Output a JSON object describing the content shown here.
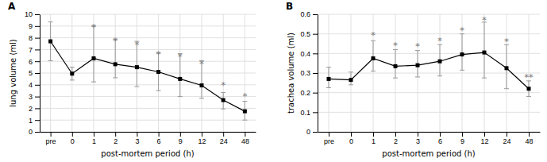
{
  "chart_data": [
    {
      "type": "line",
      "title": "A",
      "xlabel": "post-mortem period (h)",
      "ylabel": "lung volume (ml)",
      "categories": [
        "pre",
        "0",
        "1",
        "2",
        "3",
        "6",
        "9",
        "12",
        "24",
        "48"
      ],
      "values": [
        7.7,
        4.95,
        6.25,
        5.75,
        5.5,
        5.1,
        4.5,
        3.95,
        2.7,
        1.75
      ],
      "error_upper": [
        1.65,
        0.55,
        2.75,
        2.1,
        2.2,
        1.6,
        2.15,
        2.1,
        0.65,
        0.85
      ],
      "error_lower": [
        1.65,
        0.55,
        2.0,
        1.15,
        1.65,
        1.6,
        1.5,
        1.1,
        0.75,
        0.75
      ],
      "annotations": [
        {
          "category": "1",
          "y": 9.0,
          "text": "*"
        },
        {
          "category": "2",
          "y": 7.85,
          "text": "*"
        },
        {
          "category": "3",
          "y": 7.5,
          "text": "*"
        },
        {
          "category": "6",
          "y": 6.7,
          "text": "*"
        },
        {
          "category": "9",
          "y": 6.5,
          "text": "*"
        },
        {
          "category": "12",
          "y": 5.9,
          "text": "*"
        },
        {
          "category": "24",
          "y": 4.05,
          "text": "*"
        },
        {
          "category": "48",
          "y": 3.1,
          "text": "*"
        }
      ],
      "color": "#000000",
      "marker": "square",
      "grid": true,
      "ylim": [
        0,
        10
      ],
      "yticks": [
        0,
        1,
        2,
        3,
        4,
        5,
        6,
        7,
        8,
        9,
        10
      ]
    },
    {
      "type": "line",
      "title": "B",
      "xlabel": "post-mortem period (h)",
      "ylabel": "trachea volume (ml)",
      "categories": [
        "pre",
        "0",
        "1",
        "2",
        "3",
        "6",
        "9",
        "12",
        "24",
        "48"
      ],
      "values": [
        0.27,
        0.265,
        0.375,
        0.335,
        0.34,
        0.36,
        0.395,
        0.405,
        0.325,
        0.22
      ],
      "error_upper": [
        0.06,
        0.04,
        0.09,
        0.085,
        0.075,
        0.085,
        0.105,
        0.155,
        0.12,
        0.04
      ],
      "error_lower": [
        0.045,
        0.025,
        0.065,
        0.06,
        0.06,
        0.075,
        0.08,
        0.13,
        0.105,
        0.04
      ],
      "annotations": [
        {
          "category": "1",
          "y": 0.5,
          "text": "*"
        },
        {
          "category": "2",
          "y": 0.445,
          "text": "*"
        },
        {
          "category": "3",
          "y": 0.44,
          "text": "*"
        },
        {
          "category": "6",
          "y": 0.47,
          "text": "*"
        },
        {
          "category": "9",
          "y": 0.525,
          "text": "*"
        },
        {
          "category": "12",
          "y": 0.575,
          "text": "*"
        },
        {
          "category": "24",
          "y": 0.465,
          "text": "*"
        },
        {
          "category": "48",
          "y": 0.285,
          "text": "**"
        }
      ],
      "color": "#000000",
      "marker": "square",
      "grid": true,
      "ylim": [
        0,
        0.6
      ],
      "yticks": [
        0,
        0.1,
        0.2,
        0.3,
        0.4,
        0.5,
        0.6
      ]
    }
  ]
}
